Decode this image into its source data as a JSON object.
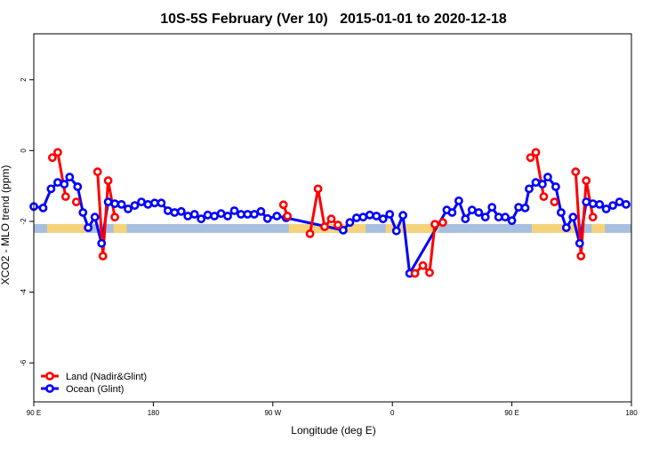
{
  "chart_data": {
    "type": "line",
    "title": "10S-5S February (Ver 10)   2015-01-01 to 2020-12-18",
    "xlabel": "Longitude (deg E)",
    "ylabel": "XCO2 - MLO trend (ppm)",
    "xlim": [
      90,
      540
    ],
    "ylim": [
      -7.1,
      3.3
    ],
    "x_ticks": [
      {
        "value": 90,
        "label": "90 E"
      },
      {
        "value": 180,
        "label": "180"
      },
      {
        "value": 270,
        "label": "90 W"
      },
      {
        "value": 360,
        "label": "0"
      },
      {
        "value": 450,
        "label": "90 E"
      },
      {
        "value": 540,
        "label": "180"
      }
    ],
    "y_ticks": [
      {
        "value": -6,
        "label": "-6"
      },
      {
        "value": -4,
        "label": "-4"
      },
      {
        "value": -2,
        "label": "-2"
      },
      {
        "value": 0,
        "label": "0"
      },
      {
        "value": 2,
        "label": "2"
      }
    ],
    "legend_position": "bottom-left",
    "land_strip": {
      "y_center": -2.2,
      "band_color": "#a7bedf",
      "land_color": "#f5d37a",
      "land_ranges": [
        [
          100,
          130
        ],
        [
          150,
          160
        ],
        [
          282,
          340
        ],
        [
          355,
          395
        ],
        [
          465,
          500
        ],
        [
          510,
          520
        ]
      ]
    },
    "series": [
      {
        "name": "Land (Nadir&Glint)",
        "color": "#ff0000",
        "segments": [
          [
            [
              104,
              -0.2
            ],
            [
              108,
              -0.05
            ],
            [
              114,
              -1.3
            ]
          ],
          [
            [
              122,
              -1.45
            ]
          ],
          [
            [
              138,
              -0.6
            ],
            [
              142,
              -2.98
            ],
            [
              146,
              -0.85
            ],
            [
              151,
              -1.88
            ]
          ],
          [
            [
              278,
              -1.53
            ],
            [
              281,
              -1.85
            ]
          ],
          [
            [
              298,
              -2.35
            ],
            [
              304,
              -1.08
            ],
            [
              309,
              -2.15
            ],
            [
              314,
              -1.93
            ],
            [
              319,
              -2.1
            ]
          ],
          [
            [
              377,
              -3.47
            ],
            [
              383,
              -3.25
            ],
            [
              388,
              -3.45
            ],
            [
              392,
              -2.08
            ],
            [
              398,
              -2.03
            ]
          ],
          [
            [
              464,
              -0.2
            ],
            [
              468,
              -0.05
            ],
            [
              474,
              -1.3
            ]
          ],
          [
            [
              482,
              -1.45
            ]
          ],
          [
            [
              498,
              -0.6
            ],
            [
              502,
              -2.98
            ],
            [
              506,
              -0.85
            ],
            [
              511,
              -1.88
            ]
          ]
        ]
      },
      {
        "name": "Ocean (Glint)",
        "color": "#0000ff",
        "points": [
          [
            90,
            -1.58
          ],
          [
            97,
            -1.62
          ],
          [
            103,
            -1.08
          ],
          [
            108,
            -0.9
          ],
          [
            113,
            -0.95
          ],
          [
            117,
            -0.75
          ],
          [
            123,
            -1.02
          ],
          [
            127,
            -1.75
          ],
          [
            131,
            -2.18
          ],
          [
            136,
            -1.88
          ],
          [
            141,
            -2.62
          ],
          [
            146,
            -1.45
          ],
          [
            151,
            -1.5
          ],
          [
            156,
            -1.52
          ],
          [
            161,
            -1.65
          ],
          [
            166,
            -1.55
          ],
          [
            171,
            -1.45
          ],
          [
            176,
            -1.52
          ],
          [
            181,
            -1.48
          ],
          [
            186,
            -1.48
          ],
          [
            191,
            -1.7
          ],
          [
            196,
            -1.75
          ],
          [
            201,
            -1.72
          ],
          [
            206,
            -1.85
          ],
          [
            211,
            -1.8
          ],
          [
            216,
            -1.93
          ],
          [
            221,
            -1.82
          ],
          [
            226,
            -1.85
          ],
          [
            231,
            -1.78
          ],
          [
            236,
            -1.85
          ],
          [
            241,
            -1.7
          ],
          [
            246,
            -1.8
          ],
          [
            251,
            -1.8
          ],
          [
            256,
            -1.8
          ],
          [
            261,
            -1.72
          ],
          [
            266,
            -1.92
          ],
          [
            273,
            -1.85
          ],
          [
            280,
            -1.9
          ],
          [
            323,
            -2.25
          ],
          [
            328,
            -2.03
          ],
          [
            333,
            -1.9
          ],
          [
            338,
            -1.88
          ],
          [
            343,
            -1.82
          ],
          [
            348,
            -1.85
          ],
          [
            353,
            -1.93
          ],
          [
            358,
            -1.8
          ],
          [
            363,
            -2.27
          ],
          [
            368,
            -1.83
          ],
          [
            373,
            -3.47
          ],
          [
            401,
            -1.68
          ],
          [
            405,
            -1.75
          ],
          [
            410,
            -1.42
          ],
          [
            415,
            -1.93
          ],
          [
            420,
            -1.68
          ],
          [
            425,
            -1.75
          ],
          [
            430,
            -1.88
          ],
          [
            435,
            -1.6
          ],
          [
            440,
            -1.88
          ],
          [
            445,
            -1.88
          ],
          [
            450,
            -1.98
          ],
          [
            455,
            -1.6
          ],
          [
            460,
            -1.62
          ],
          [
            463,
            -1.08
          ],
          [
            468,
            -0.9
          ],
          [
            473,
            -0.95
          ],
          [
            477,
            -0.75
          ],
          [
            483,
            -1.02
          ],
          [
            487,
            -1.75
          ],
          [
            491,
            -2.18
          ],
          [
            496,
            -1.88
          ],
          [
            501,
            -2.62
          ],
          [
            506,
            -1.45
          ],
          [
            511,
            -1.5
          ],
          [
            516,
            -1.52
          ],
          [
            521,
            -1.65
          ],
          [
            526,
            -1.55
          ],
          [
            531,
            -1.45
          ],
          [
            536,
            -1.52
          ]
        ]
      }
    ]
  }
}
